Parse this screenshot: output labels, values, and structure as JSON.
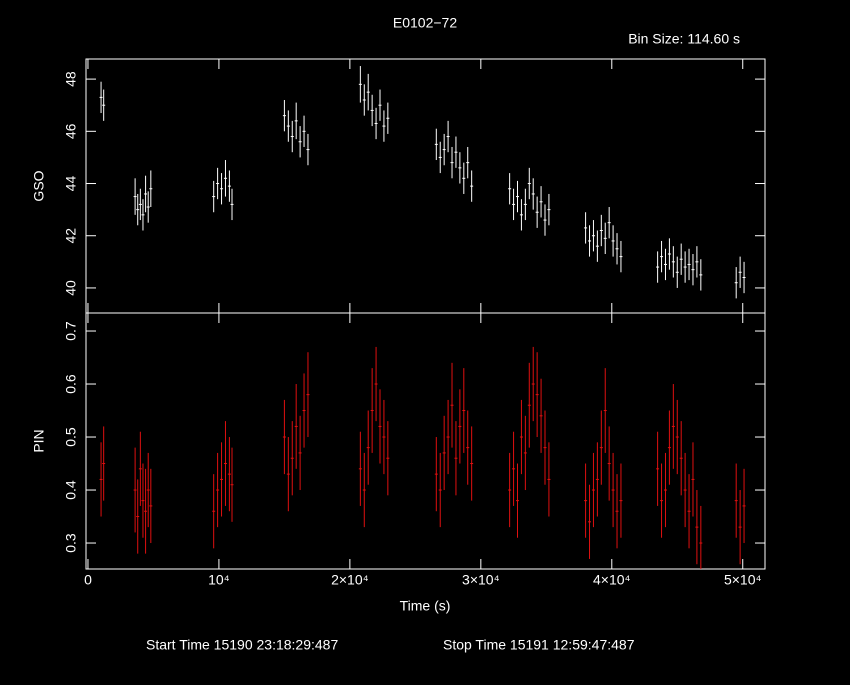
{
  "chart_data": [
    {
      "type": "scatter",
      "title": "E0102−72",
      "subtitle": "Bin Size: 114.60 s",
      "ylabel": "GSO",
      "color": "#ffffff",
      "xlim": [
        -150,
        51700
      ],
      "ylim": [
        39.04,
        48.77
      ],
      "yticks": [
        40,
        42,
        44,
        46,
        48
      ],
      "xticks": [
        0,
        {
          "value": 10000,
          "label": "10⁴"
        },
        {
          "value": 20000,
          "label": "2×10⁴"
        },
        {
          "value": 30000,
          "label": "3×10⁴"
        },
        {
          "value": 40000,
          "label": "4×10⁴"
        },
        {
          "value": 50000,
          "label": "5×10⁴"
        }
      ],
      "x": [
        1000,
        1200,
        3600,
        3800,
        4000,
        4200,
        4400,
        4600,
        4800,
        9600,
        9900,
        10200,
        10500,
        10800,
        11000,
        15000,
        15300,
        15600,
        15900,
        16200,
        16500,
        16800,
        20800,
        21100,
        21400,
        21700,
        22000,
        22300,
        22600,
        22900,
        26600,
        26900,
        27200,
        27500,
        27800,
        28100,
        28400,
        28700,
        29000,
        29300,
        32200,
        32500,
        32800,
        33100,
        33400,
        33700,
        34000,
        34300,
        34600,
        34900,
        35200,
        38000,
        38300,
        38600,
        38900,
        39200,
        39500,
        39800,
        40100,
        40400,
        40700,
        43500,
        43800,
        44100,
        44400,
        44700,
        45000,
        45300,
        45600,
        45900,
        46200,
        46500,
        46800,
        49500,
        49800,
        50100
      ],
      "values": [
        47.3,
        47.0,
        43.5,
        43.0,
        43.2,
        42.8,
        43.6,
        43.1,
        43.8,
        43.5,
        44.0,
        43.8,
        44.2,
        43.9,
        43.2,
        46.6,
        46.2,
        45.8,
        46.4,
        45.6,
        46.0,
        45.3,
        47.8,
        47.2,
        47.5,
        46.8,
        46.3,
        47.0,
        46.2,
        46.5,
        45.5,
        45.0,
        45.3,
        45.8,
        44.8,
        45.2,
        44.6,
        44.2,
        44.8,
        43.9,
        43.8,
        43.2,
        43.5,
        42.8,
        43.2,
        44.0,
        43.6,
        42.9,
        43.3,
        42.6,
        43.0,
        42.3,
        41.8,
        42.0,
        41.6,
        42.2,
        41.9,
        42.5,
        41.8,
        41.5,
        41.2,
        40.8,
        41.2,
        40.9,
        41.3,
        41.0,
        40.6,
        41.1,
        40.8,
        40.9,
        40.7,
        41.0,
        40.5,
        40.2,
        40.6,
        40.4
      ],
      "errors": [
        0.6,
        0.6,
        0.7,
        0.6,
        0.6,
        0.6,
        0.7,
        0.6,
        0.7,
        0.6,
        0.6,
        0.6,
        0.7,
        0.6,
        0.6,
        0.6,
        0.6,
        0.6,
        0.7,
        0.6,
        0.6,
        0.6,
        0.7,
        0.6,
        0.7,
        0.6,
        0.6,
        0.6,
        0.6,
        0.6,
        0.6,
        0.6,
        0.6,
        0.6,
        0.6,
        0.6,
        0.6,
        0.6,
        0.6,
        0.6,
        0.6,
        0.6,
        0.6,
        0.6,
        0.6,
        0.6,
        0.6,
        0.6,
        0.6,
        0.6,
        0.6,
        0.6,
        0.6,
        0.6,
        0.6,
        0.6,
        0.6,
        0.6,
        0.6,
        0.6,
        0.6,
        0.6,
        0.6,
        0.6,
        0.6,
        0.6,
        0.6,
        0.6,
        0.6,
        0.6,
        0.6,
        0.6,
        0.6,
        0.6,
        0.6,
        0.6
      ]
    },
    {
      "type": "scatter",
      "xlabel": "Time (s)",
      "ylabel": "PIN",
      "color": "#e01010",
      "xlim": [
        -150,
        51700
      ],
      "ylim": [
        0.251,
        0.734
      ],
      "yticks": [
        0.3,
        0.4,
        0.5,
        0.6,
        0.7
      ],
      "xticks": [
        0,
        {
          "value": 10000,
          "label": "10⁴"
        },
        {
          "value": 20000,
          "label": "2×10⁴"
        },
        {
          "value": 30000,
          "label": "3×10⁴"
        },
        {
          "value": 40000,
          "label": "4×10⁴"
        },
        {
          "value": 50000,
          "label": "5×10⁴"
        }
      ],
      "x": [
        1000,
        1200,
        3600,
        3800,
        4000,
        4200,
        4400,
        4600,
        4800,
        9600,
        9900,
        10200,
        10500,
        10800,
        11000,
        15000,
        15300,
        15600,
        15900,
        16200,
        16500,
        16800,
        20800,
        21100,
        21400,
        21700,
        22000,
        22300,
        22600,
        22900,
        26600,
        26900,
        27200,
        27500,
        27800,
        28100,
        28400,
        28700,
        29000,
        29300,
        32200,
        32500,
        32800,
        33100,
        33400,
        33700,
        34000,
        34300,
        34600,
        34900,
        35200,
        38000,
        38300,
        38600,
        38900,
        39200,
        39500,
        39800,
        40100,
        40400,
        40700,
        43500,
        43800,
        44100,
        44400,
        44700,
        45000,
        45300,
        45600,
        45900,
        46200,
        46500,
        46800,
        49500,
        49800,
        50100
      ],
      "values": [
        0.42,
        0.45,
        0.4,
        0.35,
        0.44,
        0.38,
        0.36,
        0.4,
        0.37,
        0.36,
        0.4,
        0.42,
        0.45,
        0.43,
        0.41,
        0.5,
        0.43,
        0.46,
        0.52,
        0.47,
        0.55,
        0.58,
        0.44,
        0.4,
        0.48,
        0.55,
        0.6,
        0.52,
        0.5,
        0.46,
        0.43,
        0.4,
        0.47,
        0.5,
        0.56,
        0.46,
        0.52,
        0.55,
        0.48,
        0.45,
        0.4,
        0.44,
        0.38,
        0.5,
        0.47,
        0.56,
        0.6,
        0.58,
        0.54,
        0.48,
        0.42,
        0.38,
        0.34,
        0.4,
        0.42,
        0.48,
        0.55,
        0.45,
        0.4,
        0.36,
        0.38,
        0.44,
        0.38,
        0.4,
        0.48,
        0.52,
        0.5,
        0.46,
        0.4,
        0.36,
        0.42,
        0.33,
        0.3,
        0.38,
        0.33,
        0.37
      ],
      "errors": [
        0.07,
        0.07,
        0.08,
        0.07,
        0.07,
        0.07,
        0.08,
        0.07,
        0.07,
        0.07,
        0.07,
        0.07,
        0.08,
        0.07,
        0.07,
        0.07,
        0.07,
        0.07,
        0.08,
        0.07,
        0.07,
        0.08,
        0.07,
        0.07,
        0.07,
        0.08,
        0.07,
        0.07,
        0.07,
        0.07,
        0.07,
        0.07,
        0.07,
        0.07,
        0.08,
        0.07,
        0.07,
        0.08,
        0.07,
        0.07,
        0.07,
        0.07,
        0.07,
        0.07,
        0.07,
        0.08,
        0.07,
        0.08,
        0.07,
        0.07,
        0.07,
        0.07,
        0.07,
        0.07,
        0.07,
        0.07,
        0.08,
        0.07,
        0.07,
        0.07,
        0.07,
        0.07,
        0.07,
        0.07,
        0.07,
        0.08,
        0.07,
        0.07,
        0.07,
        0.07,
        0.07,
        0.07,
        0.07,
        0.07,
        0.07,
        0.07
      ]
    }
  ],
  "footer": {
    "start": "Start Time 15190 23:18:29:487",
    "stop": "Stop Time 15191 12:59:47:487"
  }
}
